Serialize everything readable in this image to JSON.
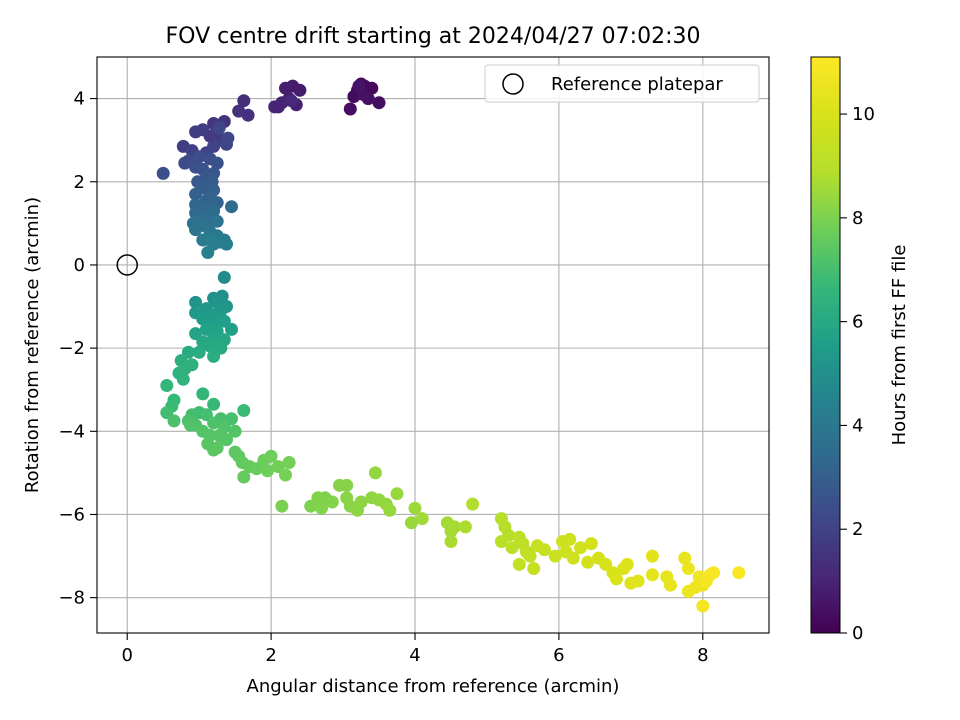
{
  "chart_data": {
    "type": "scatter",
    "title": "FOV centre drift starting at 2024/04/27 07:02:30",
    "xlabel": "Angular distance from reference (arcmin)",
    "ylabel": "Rotation from reference (arcmin)",
    "xlim": [
      -0.42,
      8.92
    ],
    "ylim": [
      -8.85,
      5.0
    ],
    "xticks": [
      "0",
      "2",
      "4",
      "6",
      "8"
    ],
    "yticks": [
      "4",
      "2",
      "0",
      "−2",
      "−4",
      "−6",
      "−8"
    ],
    "grid": true,
    "legend": {
      "placement": "top-right",
      "label": "Reference platepar"
    },
    "reference_point": {
      "x": 0,
      "y": 0
    },
    "colorbar": {
      "label": "Hours from first FF file",
      "range": [
        0,
        11.1
      ],
      "ticks": [
        "0",
        "2",
        "4",
        "6",
        "8",
        "10"
      ],
      "colormap": "viridis"
    },
    "series": [
      {
        "points": [
          [
            3.2,
            4.2,
            0.1
          ],
          [
            3.3,
            4.3,
            0.15
          ],
          [
            3.4,
            4.25,
            0.2
          ],
          [
            3.25,
            4.35,
            0.25
          ],
          [
            3.15,
            4.05,
            0.3
          ],
          [
            3.5,
            3.9,
            0.35
          ],
          [
            3.1,
            3.75,
            0.4
          ],
          [
            3.35,
            4.0,
            0.45
          ],
          [
            3.28,
            4.1,
            0.5
          ],
          [
            3.22,
            4.3,
            0.55
          ],
          [
            2.3,
            4.3,
            0.7
          ],
          [
            2.4,
            4.2,
            0.75
          ],
          [
            2.2,
            4.25,
            0.8
          ],
          [
            2.25,
            4.0,
            0.85
          ],
          [
            2.35,
            3.85,
            0.9
          ],
          [
            2.1,
            3.8,
            0.95
          ],
          [
            2.15,
            3.9,
            1.0
          ],
          [
            2.05,
            3.8,
            1.05
          ],
          [
            2.28,
            3.95,
            1.1
          ],
          [
            1.62,
            3.95,
            1.3
          ],
          [
            1.68,
            3.6,
            1.35
          ],
          [
            1.55,
            3.7,
            1.4
          ],
          [
            1.35,
            3.45,
            1.5
          ],
          [
            1.2,
            3.4,
            1.55
          ],
          [
            1.25,
            3.2,
            1.6
          ],
          [
            1.15,
            3.1,
            1.7
          ],
          [
            1.3,
            3.0,
            1.75
          ],
          [
            1.05,
            3.25,
            1.8
          ],
          [
            0.95,
            3.2,
            1.85
          ],
          [
            0.78,
            2.85,
            1.9
          ],
          [
            0.9,
            2.75,
            1.95
          ],
          [
            1.1,
            2.7,
            2.0
          ],
          [
            1.2,
            2.85,
            2.05
          ],
          [
            1.38,
            2.9,
            2.1
          ],
          [
            1.4,
            3.05,
            2.15
          ],
          [
            1.28,
            3.3,
            2.2
          ],
          [
            0.85,
            2.5,
            2.25
          ],
          [
            0.8,
            2.45,
            2.3
          ],
          [
            1.0,
            2.6,
            2.35
          ],
          [
            1.15,
            2.55,
            2.4
          ],
          [
            0.5,
            2.2,
            2.45
          ],
          [
            1.25,
            2.45,
            2.5
          ],
          [
            0.95,
            2.35,
            2.55
          ],
          [
            1.05,
            2.3,
            2.6
          ],
          [
            1.2,
            2.2,
            2.7
          ],
          [
            1.1,
            2.1,
            2.75
          ],
          [
            0.98,
            2.0,
            2.8
          ],
          [
            1.18,
            2.0,
            2.9
          ],
          [
            1.05,
            1.85,
            2.95
          ],
          [
            1.2,
            1.8,
            3.0
          ],
          [
            0.95,
            1.7,
            3.05
          ],
          [
            1.15,
            1.65,
            3.1
          ],
          [
            1.1,
            1.55,
            3.15
          ],
          [
            1.25,
            1.5,
            3.2
          ],
          [
            0.95,
            1.45,
            3.3
          ],
          [
            1.05,
            1.35,
            3.35
          ],
          [
            1.2,
            1.3,
            3.4
          ],
          [
            0.95,
            1.25,
            3.45
          ],
          [
            1.45,
            1.4,
            3.5
          ],
          [
            1.15,
            1.2,
            3.55
          ],
          [
            1.0,
            1.1,
            3.6
          ],
          [
            1.12,
            1.0,
            3.65
          ],
          [
            0.92,
            1.0,
            3.7
          ],
          [
            1.25,
            1.05,
            3.75
          ],
          [
            1.05,
            0.95,
            3.8
          ],
          [
            0.95,
            0.85,
            3.85
          ],
          [
            1.15,
            0.8,
            3.9
          ],
          [
            1.25,
            0.7,
            4.0
          ],
          [
            1.05,
            0.6,
            4.05
          ],
          [
            1.3,
            0.55,
            4.1
          ],
          [
            1.35,
            0.6,
            4.15
          ],
          [
            1.2,
            0.5,
            4.2
          ],
          [
            1.15,
            0.6,
            4.25
          ],
          [
            1.38,
            0.5,
            4.3
          ],
          [
            1.12,
            0.3,
            4.35
          ],
          [
            1.35,
            -0.3,
            4.8
          ],
          [
            1.32,
            -0.75,
            5.0
          ],
          [
            1.2,
            -0.8,
            5.05
          ],
          [
            0.95,
            -0.9,
            5.1
          ],
          [
            1.25,
            -0.9,
            5.15
          ],
          [
            1.38,
            -1.0,
            5.2
          ],
          [
            1.1,
            -1.05,
            5.25
          ],
          [
            1.3,
            -1.1,
            5.3
          ],
          [
            0.95,
            -1.15,
            5.35
          ],
          [
            1.2,
            -1.2,
            5.4
          ],
          [
            1.15,
            -1.3,
            5.45
          ],
          [
            1.05,
            -1.3,
            5.5
          ],
          [
            1.35,
            -1.35,
            5.55
          ],
          [
            1.25,
            -1.4,
            5.6
          ],
          [
            1.45,
            -1.55,
            5.65
          ],
          [
            1.1,
            -1.55,
            5.7
          ],
          [
            1.25,
            -1.6,
            5.75
          ],
          [
            0.95,
            -1.65,
            5.8
          ],
          [
            1.2,
            -1.75,
            5.85
          ],
          [
            1.35,
            -1.8,
            5.9
          ],
          [
            1.05,
            -1.85,
            5.95
          ],
          [
            1.15,
            -1.95,
            6.0
          ],
          [
            1.3,
            -2.0,
            6.05
          ],
          [
            0.85,
            -2.1,
            6.1
          ],
          [
            1.0,
            -2.1,
            6.15
          ],
          [
            1.2,
            -2.2,
            6.2
          ],
          [
            0.75,
            -2.3,
            6.25
          ],
          [
            0.9,
            -2.4,
            6.3
          ],
          [
            0.8,
            -2.5,
            6.35
          ],
          [
            0.72,
            -2.6,
            6.4
          ],
          [
            0.78,
            -2.75,
            6.5
          ],
          [
            0.55,
            -2.9,
            6.55
          ],
          [
            1.05,
            -3.1,
            6.6
          ],
          [
            0.65,
            -3.25,
            6.65
          ],
          [
            1.2,
            -3.35,
            6.7
          ],
          [
            0.62,
            -3.4,
            6.75
          ],
          [
            1.62,
            -3.5,
            6.8
          ],
          [
            1.0,
            -3.55,
            6.85
          ],
          [
            0.55,
            -3.55,
            6.9
          ],
          [
            0.9,
            -3.6,
            6.95
          ],
          [
            1.1,
            -3.6,
            7.0
          ],
          [
            1.3,
            -3.7,
            7.05
          ],
          [
            1.45,
            -3.7,
            7.05
          ],
          [
            0.65,
            -3.75,
            7.1
          ],
          [
            0.85,
            -3.75,
            7.1
          ],
          [
            1.2,
            -3.8,
            7.15
          ],
          [
            0.95,
            -3.85,
            7.15
          ],
          [
            1.35,
            -3.9,
            7.2
          ],
          [
            0.88,
            -3.85,
            7.2
          ],
          [
            1.05,
            -4.0,
            7.25
          ],
          [
            1.5,
            -4.0,
            7.25
          ],
          [
            1.28,
            -4.1,
            7.3
          ],
          [
            1.15,
            -4.1,
            7.3
          ],
          [
            1.38,
            -4.2,
            7.35
          ],
          [
            1.12,
            -4.3,
            7.35
          ],
          [
            1.25,
            -4.4,
            7.4
          ],
          [
            1.2,
            -4.45,
            7.4
          ],
          [
            1.5,
            -4.5,
            7.45
          ],
          [
            1.55,
            -4.6,
            7.5
          ],
          [
            1.6,
            -4.75,
            7.55
          ],
          [
            1.7,
            -4.85,
            7.6
          ],
          [
            1.62,
            -5.1,
            7.6
          ],
          [
            1.8,
            -4.9,
            7.65
          ],
          [
            1.9,
            -4.7,
            7.7
          ],
          [
            2.0,
            -4.6,
            7.75
          ],
          [
            1.95,
            -4.95,
            7.75
          ],
          [
            2.1,
            -4.85,
            7.8
          ],
          [
            2.25,
            -4.75,
            7.85
          ],
          [
            2.2,
            -5.05,
            7.9
          ],
          [
            2.15,
            -5.8,
            7.95
          ],
          [
            2.55,
            -5.8,
            8.0
          ],
          [
            2.65,
            -5.6,
            8.05
          ],
          [
            2.75,
            -5.6,
            8.05
          ],
          [
            2.85,
            -5.7,
            8.1
          ],
          [
            2.7,
            -5.85,
            8.1
          ],
          [
            2.95,
            -5.3,
            8.15
          ],
          [
            3.05,
            -5.3,
            8.15
          ],
          [
            3.05,
            -5.6,
            8.2
          ],
          [
            3.1,
            -5.8,
            8.2
          ],
          [
            3.2,
            -5.9,
            8.25
          ],
          [
            3.25,
            -5.7,
            8.25
          ],
          [
            3.4,
            -5.6,
            8.3
          ],
          [
            3.5,
            -5.65,
            8.3
          ],
          [
            3.45,
            -5.0,
            8.35
          ],
          [
            3.6,
            -5.75,
            8.35
          ],
          [
            3.65,
            -5.9,
            8.4
          ],
          [
            3.75,
            -5.5,
            8.4
          ],
          [
            3.95,
            -6.2,
            8.45
          ],
          [
            4.0,
            -5.85,
            8.5
          ],
          [
            4.1,
            -6.1,
            8.55
          ],
          [
            4.45,
            -6.2,
            8.6
          ],
          [
            4.5,
            -6.4,
            8.65
          ],
          [
            4.55,
            -6.3,
            8.65
          ],
          [
            4.5,
            -6.65,
            8.7
          ],
          [
            4.7,
            -6.3,
            8.75
          ],
          [
            4.8,
            -5.75,
            8.8
          ],
          [
            5.2,
            -6.1,
            8.9
          ],
          [
            5.25,
            -6.3,
            8.95
          ],
          [
            5.3,
            -6.5,
            9.0
          ],
          [
            5.2,
            -6.65,
            9.05
          ],
          [
            5.35,
            -6.8,
            9.1
          ],
          [
            5.45,
            -6.55,
            9.15
          ],
          [
            5.5,
            -6.7,
            9.2
          ],
          [
            5.55,
            -6.9,
            9.25
          ],
          [
            5.6,
            -7.0,
            9.3
          ],
          [
            5.45,
            -7.2,
            9.35
          ],
          [
            5.65,
            -7.3,
            9.4
          ],
          [
            5.7,
            -6.75,
            9.45
          ],
          [
            5.8,
            -6.85,
            9.5
          ],
          [
            5.95,
            -7.0,
            9.55
          ],
          [
            6.05,
            -6.65,
            9.6
          ],
          [
            6.1,
            -6.9,
            9.65
          ],
          [
            6.15,
            -6.6,
            9.65
          ],
          [
            6.2,
            -7.05,
            9.7
          ],
          [
            6.3,
            -6.8,
            9.75
          ],
          [
            6.4,
            -7.15,
            9.8
          ],
          [
            6.45,
            -6.7,
            9.85
          ],
          [
            6.55,
            -7.05,
            9.9
          ],
          [
            6.65,
            -7.2,
            9.95
          ],
          [
            6.75,
            -7.4,
            10.0
          ],
          [
            6.8,
            -7.55,
            10.05
          ],
          [
            6.9,
            -7.3,
            10.1
          ],
          [
            6.95,
            -7.2,
            10.15
          ],
          [
            7.0,
            -7.65,
            10.2
          ],
          [
            7.1,
            -7.6,
            10.25
          ],
          [
            7.3,
            -7.0,
            10.3
          ],
          [
            7.3,
            -7.45,
            10.35
          ],
          [
            7.5,
            -7.5,
            10.4
          ],
          [
            7.55,
            -7.7,
            10.45
          ],
          [
            7.75,
            -7.05,
            10.5
          ],
          [
            7.8,
            -7.3,
            10.55
          ],
          [
            7.8,
            -7.85,
            10.6
          ],
          [
            7.9,
            -7.75,
            10.65
          ],
          [
            7.95,
            -7.5,
            10.7
          ],
          [
            8.0,
            -7.7,
            10.75
          ],
          [
            8.0,
            -8.2,
            10.8
          ],
          [
            8.05,
            -7.6,
            10.85
          ],
          [
            8.1,
            -7.45,
            10.9
          ],
          [
            8.15,
            -7.4,
            10.95
          ],
          [
            8.5,
            -7.4,
            11.0
          ]
        ]
      }
    ]
  }
}
